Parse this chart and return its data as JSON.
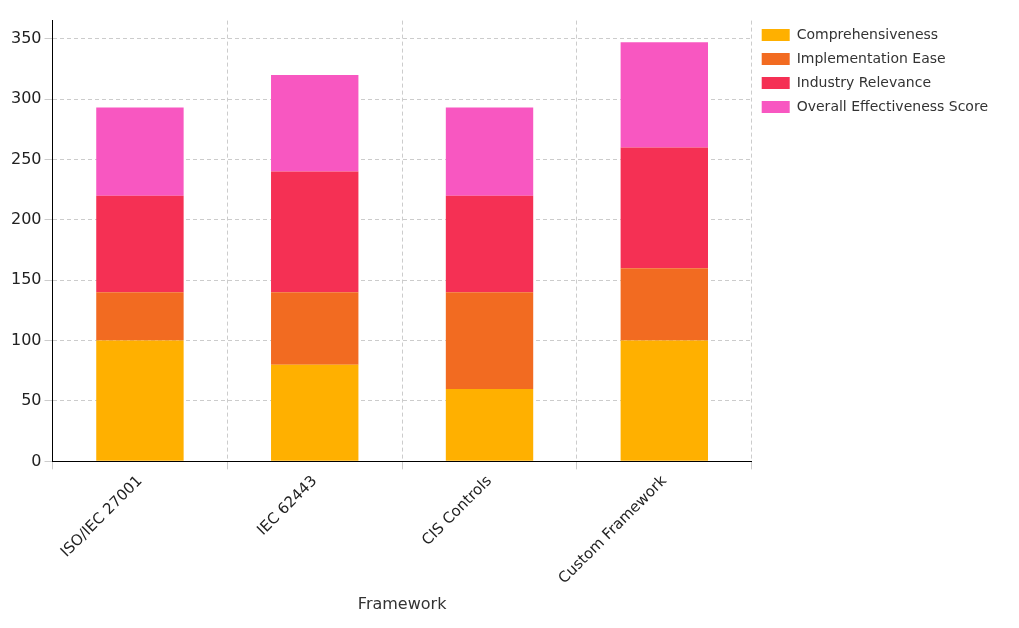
{
  "chart_data": {
    "type": "bar",
    "xlabel": "Framework",
    "categories": [
      "ISO/IEC 27001",
      "IEC 62443",
      "CIS Controls",
      "Custom Framework"
    ],
    "series": [
      {
        "name": "Comprehensiveness",
        "color": "#ffb000",
        "values": [
          100,
          80,
          60,
          100
        ]
      },
      {
        "name": "Implementation Ease",
        "color": "#f26b21",
        "values": [
          40,
          60,
          80,
          60
        ]
      },
      {
        "name": "Industry Relevance",
        "color": "#f53054",
        "values": [
          80,
          100,
          80,
          100
        ]
      },
      {
        "name": "Overall Effectiveness Score",
        "color": "#f857c1",
        "values": [
          73,
          80,
          73,
          87
        ]
      }
    ],
    "stacked": true,
    "ylim": [
      0,
      365
    ],
    "yticks": [
      0,
      50,
      100,
      150,
      200,
      250,
      300,
      350
    ],
    "grid": true,
    "legend": "top right"
  }
}
